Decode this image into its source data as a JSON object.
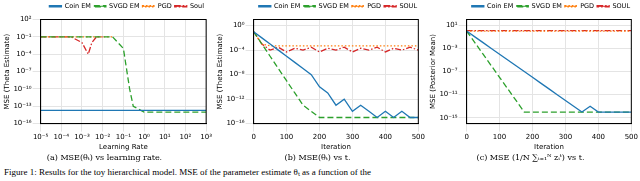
{
  "chart_data": [
    {
      "type": "line",
      "title": "(a) MSE(θₜ) vs learning rate.",
      "x_label": "Learning Rate",
      "y_label": "MSE (Theta Estimate)",
      "log": true,
      "grid": true,
      "legend": "top right",
      "x": [
        1e-05,
        3e-05,
        0.0001,
        0.0003,
        0.001,
        0.002,
        0.003,
        0.005,
        0.01,
        0.03,
        0.1,
        0.2,
        0.3,
        1,
        3,
        10,
        100,
        1000
      ],
      "xlim": [
        1e-05,
        1000
      ],
      "xticks": [
        {
          "value": 1e-05,
          "label": "10⁻⁵"
        },
        {
          "value": 0.0001,
          "label": "10⁻⁴"
        },
        {
          "value": 0.001,
          "label": "10⁻³"
        },
        {
          "value": 0.01,
          "label": "10⁻²"
        },
        {
          "value": 0.1,
          "label": "10⁻¹"
        },
        {
          "value": 1,
          "label": "10⁰"
        },
        {
          "value": 10,
          "label": "10¹"
        },
        {
          "value": 100,
          "label": "10²"
        },
        {
          "value": 1000,
          "label": "10³"
        }
      ],
      "ylim": [
        1e-16,
        100
      ],
      "yticks": [
        {
          "value": 1e-16,
          "label": "10⁻¹⁶"
        },
        {
          "value": 1e-13,
          "label": "10⁻¹³"
        },
        {
          "value": 1e-10,
          "label": "10⁻¹⁰"
        },
        {
          "value": 1e-07,
          "label": "10⁻⁷"
        },
        {
          "value": 0.0001,
          "label": "10⁻⁴"
        },
        {
          "value": 0.1,
          "label": "10⁻¹"
        },
        {
          "value": 100,
          "label": "10²"
        }
      ],
      "series": [
        {
          "name": "Coin EM",
          "color": "#1f77b4",
          "line_style": "solid",
          "values": [
            2e-14,
            2e-14,
            2e-14,
            2e-14,
            2e-14,
            2e-14,
            2e-14,
            2e-14,
            2e-14,
            2e-14,
            2e-14,
            2e-14,
            2e-14,
            2e-14,
            2e-14,
            2e-14,
            2e-14,
            2e-14
          ]
        },
        {
          "name": "SVGD EM",
          "color": "#2ca02c",
          "line_style": "dashed",
          "values": [
            0.1,
            0.1,
            0.1,
            0.1,
            0.1,
            0.1,
            0.1,
            0.1,
            0.1,
            0.1,
            0.001,
            1e-10,
            1e-13,
            1e-14,
            1e-14,
            1e-14,
            1e-14,
            1e-14
          ]
        },
        {
          "name": "PGD",
          "color": "#ff7f0e",
          "line_style": "dotted",
          "values": [
            0.1,
            0.1,
            0.1,
            0.1,
            0.1,
            0.1,
            0.1,
            0.1,
            0.1,
            0.1,
            null,
            null,
            null,
            null,
            null,
            null,
            null,
            null
          ]
        },
        {
          "name": "Soul",
          "color": "#d62728",
          "line_style": "dashdot",
          "values": [
            0.1,
            0.1,
            0.1,
            0.1,
            0.01,
            0.0001,
            0.01,
            0.1,
            0.1,
            null,
            null,
            null,
            null,
            null,
            null,
            null,
            null,
            null
          ]
        }
      ]
    },
    {
      "type": "line",
      "title": "(b) MSE(θₜ) vs t.",
      "x_label": "Iteration",
      "y_label": "MSE (Theta Estimate)",
      "log": "y",
      "grid": true,
      "legend": "top right",
      "x": [
        0,
        25,
        50,
        75,
        100,
        125,
        150,
        175,
        200,
        225,
        250,
        275,
        300,
        325,
        350,
        375,
        400,
        425,
        450,
        475,
        500
      ],
      "xlim": [
        0,
        500
      ],
      "xticks": [
        0,
        100,
        200,
        300,
        400,
        500
      ],
      "ylim": [
        1e-16,
        10
      ],
      "yticks": [
        {
          "value": 1e-16,
          "label": "10⁻¹⁶"
        },
        {
          "value": 1e-12,
          "label": "10⁻¹²"
        },
        {
          "value": 1e-08,
          "label": "10⁻⁸"
        },
        {
          "value": 0.0001,
          "label": "10⁻⁴"
        },
        {
          "value": 1,
          "label": "10⁰"
        }
      ],
      "series": [
        {
          "name": "Coin EM",
          "color": "#1f77b4",
          "line_style": "solid",
          "values": [
            0.1,
            0.01,
            0.001,
            0.0001,
            1e-05,
            1e-06,
            1e-07,
            1e-08,
            1e-10,
            1e-11,
            1e-13,
            1e-12,
            1e-14,
            1e-13,
            1e-14,
            1e-15,
            1e-14,
            1e-15,
            1e-14,
            1e-15,
            1e-15
          ]
        },
        {
          "name": "SVGD EM",
          "color": "#2ca02c",
          "line_style": "dashed",
          "values": [
            0.1,
            0.001,
            1e-05,
            1e-07,
            1e-09,
            1e-11,
            1e-13,
            1e-14,
            1e-15,
            1e-15,
            1e-15,
            1e-15,
            1e-15,
            1e-15,
            1e-15,
            1e-15,
            1e-15,
            1e-15,
            1e-15,
            1e-15,
            1e-15
          ]
        },
        {
          "name": "PGD",
          "color": "#ff7f0e",
          "line_style": "dotted",
          "values": [
            0.1,
            0.001,
            0.0005,
            0.0005,
            0.0005,
            0.0005,
            0.0005,
            0.0005,
            0.0005,
            0.0005,
            0.0005,
            0.0005,
            0.0005,
            0.0005,
            0.0005,
            0.0005,
            0.0005,
            0.0005,
            0.0005,
            0.0005,
            0.0005
          ]
        },
        {
          "name": "SOUL",
          "color": "#d62728",
          "line_style": "dashdot",
          "values": [
            0.1,
            0.001,
            0.0001,
            0.0003,
            5e-05,
            0.0002,
            0.0001,
            0.0003,
            5e-05,
            0.0002,
            0.0001,
            0.0003,
            5e-05,
            0.0002,
            0.0001,
            0.0003,
            5e-05,
            0.0002,
            0.0001,
            0.0003,
            0.0001
          ]
        }
      ]
    },
    {
      "type": "line",
      "title": "(c) MSE (1/N ∑ᵢ₌₁ᴺ zᵢᵗ) vs t.",
      "x_label": "Iteration",
      "y_label": "MSE (Posterior Mean)",
      "log": "y",
      "grid": true,
      "legend": "top right",
      "x": [
        0,
        25,
        50,
        75,
        100,
        125,
        150,
        175,
        200,
        225,
        250,
        275,
        300,
        325,
        350,
        375,
        400,
        425,
        450,
        475,
        500
      ],
      "xlim": [
        0,
        500
      ],
      "xticks": [
        0,
        100,
        200,
        300,
        400,
        500
      ],
      "ylim": [
        1e-16,
        100
      ],
      "yticks": [
        {
          "value": 1e-15,
          "label": "10⁻¹⁵"
        },
        {
          "value": 1e-11,
          "label": "10⁻¹¹"
        },
        {
          "value": 1e-07,
          "label": "10⁻⁷"
        },
        {
          "value": 0.001,
          "label": "10⁻³"
        },
        {
          "value": 10,
          "label": "10¹"
        }
      ],
      "series": [
        {
          "name": "Coin EM",
          "color": "#1f77b4",
          "line_style": "solid",
          "values": [
            1,
            0.1,
            0.01,
            0.001,
            0.0001,
            1e-05,
            1e-06,
            1e-07,
            1e-08,
            1e-09,
            1e-10,
            1e-11,
            1e-12,
            1e-13,
            1e-14,
            1e-13,
            1e-14,
            1e-14,
            1e-14,
            1e-14,
            1e-14
          ]
        },
        {
          "name": "SVGD EM",
          "color": "#2ca02c",
          "line_style": "dashed",
          "values": [
            1,
            0.01,
            0.0001,
            1e-06,
            1e-08,
            1e-10,
            1e-12,
            1e-14,
            1e-14,
            1e-14,
            1e-14,
            1e-14,
            1e-14,
            1e-14,
            1e-14,
            1e-14,
            1e-14,
            1e-14,
            1e-14,
            1e-14,
            1e-14
          ]
        },
        {
          "name": "PGD",
          "color": "#ff7f0e",
          "line_style": "dotted",
          "values": [
            1,
            1,
            1,
            1,
            1,
            1,
            1,
            1,
            1,
            1,
            1,
            1,
            1,
            1,
            1,
            1,
            1,
            1,
            1,
            1,
            1
          ]
        },
        {
          "name": "SOUL",
          "color": "#d62728",
          "line_style": "dashdot",
          "values": [
            1.2,
            1.2,
            1.2,
            1.2,
            1.2,
            1.2,
            1.2,
            1.2,
            1.2,
            1.2,
            1.2,
            1.2,
            1.2,
            1.2,
            1.2,
            1.2,
            1.2,
            1.2,
            1.2,
            1.2,
            1.2
          ]
        }
      ]
    }
  ],
  "caption": "Figure 1: Results for the toy hierarchical model. MSE of the parameter estimate θₜ as a function of the"
}
